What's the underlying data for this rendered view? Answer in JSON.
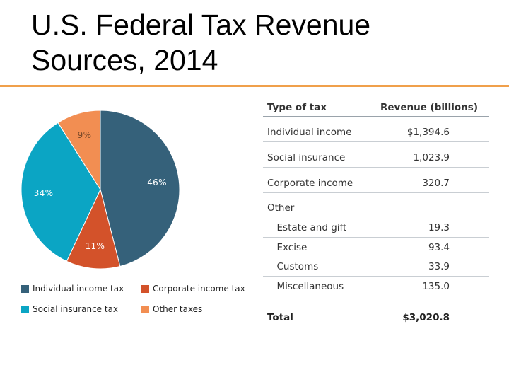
{
  "title_lines": [
    "U.S. Federal Tax Revenue",
    "Sources, 2014"
  ],
  "accent_color": "#F0A04B",
  "chart_data": [
    {
      "type": "pie",
      "slices": [
        {
          "label": "Individual income tax",
          "value": 46,
          "display": "46%",
          "color": "#35617A"
        },
        {
          "label": "Corporate income tax",
          "value": 11,
          "display": "11%",
          "color": "#D3522A"
        },
        {
          "label": "Social insurance tax",
          "value": 34,
          "display": "34%",
          "color": "#0BA5C4"
        },
        {
          "label": "Other taxes",
          "value": 9,
          "display": "9%",
          "color": "#F28E52"
        }
      ],
      "legend": [
        {
          "label": "Individual income tax",
          "color": "#35617A"
        },
        {
          "label": "Corporate income tax",
          "color": "#D3522A"
        },
        {
          "label": "Social insurance tax",
          "color": "#0BA5C4"
        },
        {
          "label": "Other taxes",
          "color": "#F28E52"
        }
      ],
      "legend_placement": "bottom"
    },
    {
      "type": "table",
      "columns": [
        "Type of tax",
        "Revenue (billions)"
      ],
      "rows": [
        {
          "type": "Individual income",
          "value": "$1,394.6",
          "sep": true
        },
        {
          "type": "Social insurance",
          "value": "1,023.9",
          "sep": true
        },
        {
          "type": "Corporate income",
          "value": "320.7",
          "sep": true
        },
        {
          "type": "Other",
          "value": "",
          "sep": false
        },
        {
          "type": "—Estate and gift",
          "value": "19.3",
          "sep": true
        },
        {
          "type": "—Excise",
          "value": "93.4",
          "sep": true
        },
        {
          "type": "—Customs",
          "value": "33.9",
          "sep": true
        },
        {
          "type": "—Miscellaneous",
          "value": "135.0",
          "sep": true
        }
      ],
      "total": {
        "type": "Total",
        "value": "$3,020.8"
      }
    }
  ]
}
